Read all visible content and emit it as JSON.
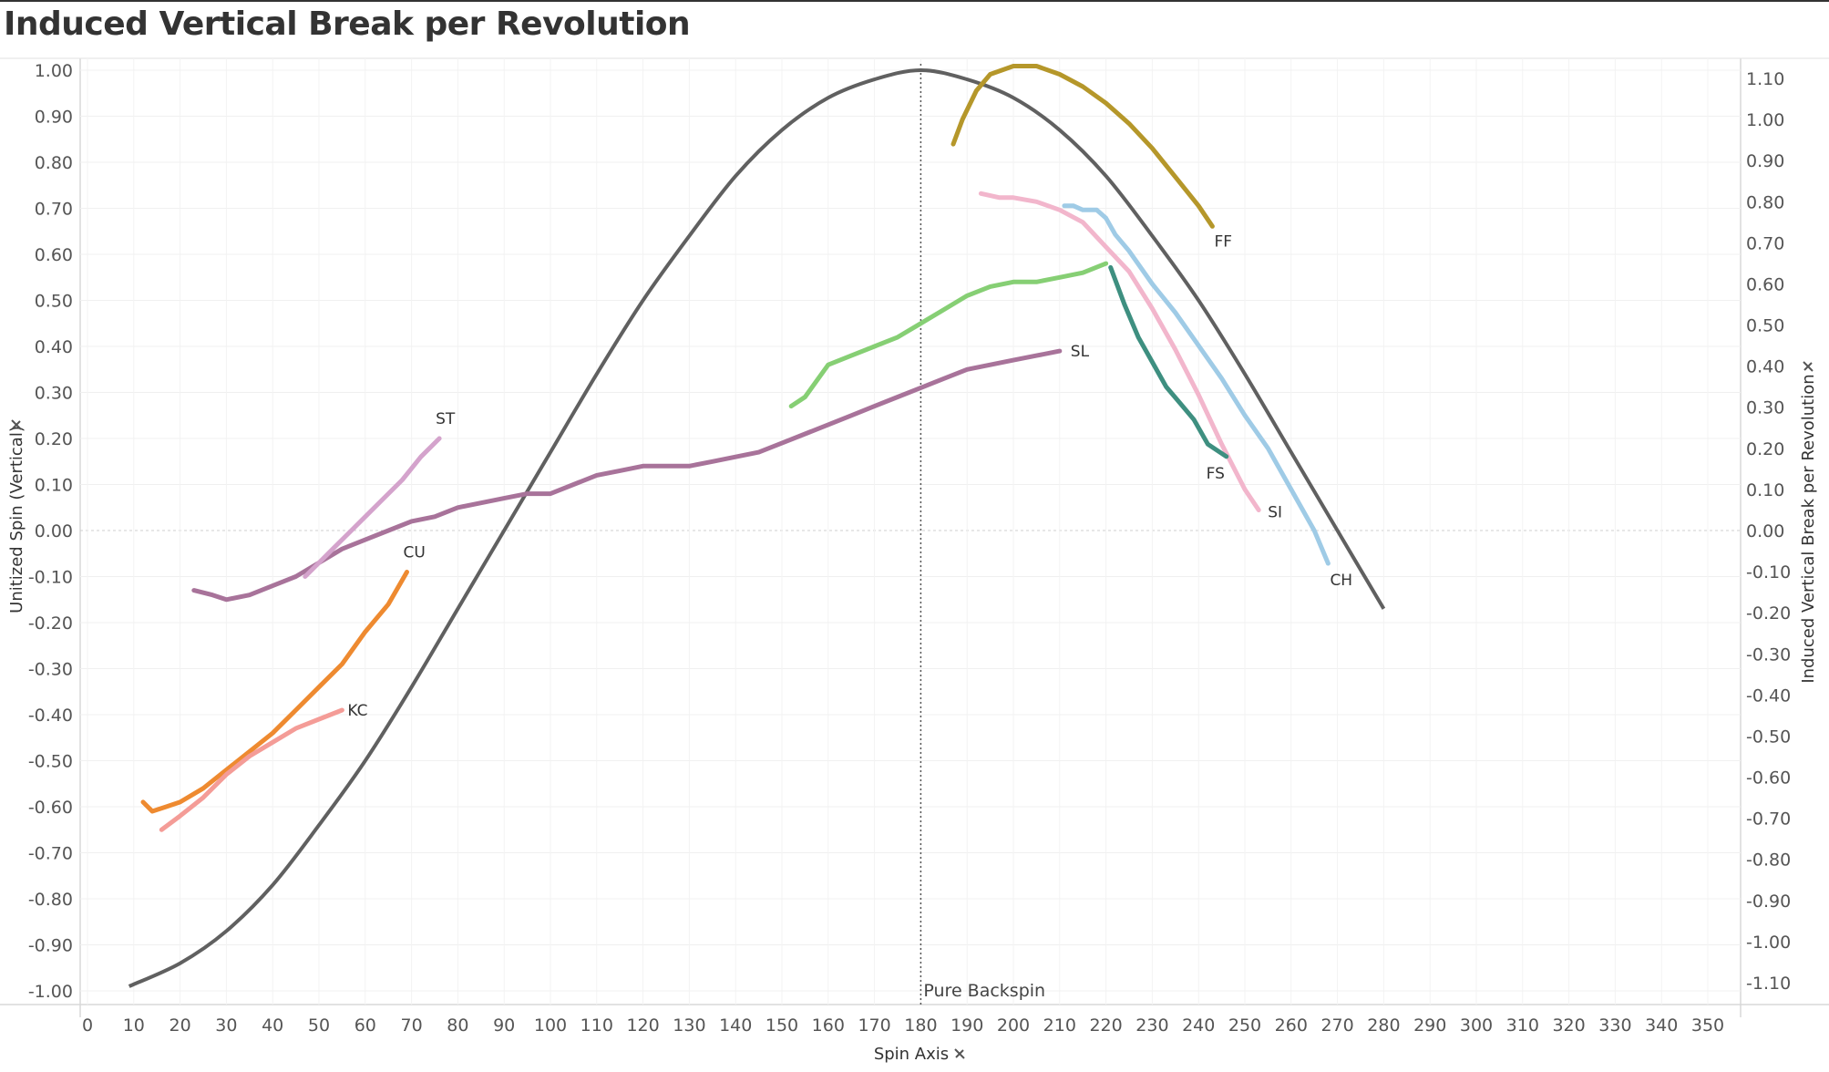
{
  "page_title": "Induced Vertical Break per Revolution",
  "chart_data": {
    "type": "line",
    "title": "Induced Vertical Break per Revolution",
    "xlabel": "Spin Axis",
    "ylabel": "Unitized Spin (Vertical)",
    "y2label": "Induced Vertical Break per Revolution",
    "xlim": [
      0,
      360
    ],
    "ylim": [
      -1.0,
      1.0
    ],
    "y2lim": [
      -1.1,
      1.1
    ],
    "xticks": [
      "0",
      "10",
      "20",
      "30",
      "40",
      "50",
      "60",
      "70",
      "80",
      "90",
      "100",
      "110",
      "120",
      "130",
      "140",
      "150",
      "160",
      "170",
      "180",
      "190",
      "200",
      "210",
      "220",
      "230",
      "240",
      "250",
      "260",
      "270",
      "280",
      "290",
      "300",
      "310",
      "320",
      "330",
      "340",
      "350"
    ],
    "yticks": [
      "1.00",
      "0.90",
      "0.80",
      "0.70",
      "0.60",
      "0.50",
      "0.40",
      "0.30",
      "0.20",
      "0.10",
      "0.00",
      "-0.10",
      "-0.20",
      "-0.30",
      "-0.40",
      "-0.50",
      "-0.60",
      "-0.70",
      "-0.80",
      "-0.90",
      "-1.00"
    ],
    "y2ticks": [
      "1.10",
      "1.00",
      "0.90",
      "0.80",
      "0.70",
      "0.60",
      "0.50",
      "0.40",
      "0.30",
      "0.20",
      "0.10",
      "0.00",
      "-0.10",
      "-0.20",
      "-0.30",
      "-0.40",
      "-0.50",
      "-0.60",
      "-0.70",
      "-0.80",
      "-0.90",
      "-1.00",
      "-1.10"
    ],
    "grid": true,
    "reference_line": {
      "x": 180,
      "label": "Pure Backspin"
    },
    "curve": {
      "axis": "left",
      "color": "#606060",
      "x": [
        9,
        20,
        30,
        40,
        50,
        60,
        70,
        80,
        90,
        100,
        110,
        120,
        130,
        140,
        150,
        160,
        170,
        180,
        190,
        200,
        210,
        220,
        230,
        240,
        250,
        260,
        270,
        280
      ],
      "values": [
        -0.99,
        -0.94,
        -0.87,
        -0.77,
        -0.64,
        -0.5,
        -0.34,
        -0.17,
        0.0,
        0.17,
        0.34,
        0.5,
        0.64,
        0.77,
        0.87,
        0.94,
        0.98,
        1.0,
        0.98,
        0.94,
        0.87,
        0.77,
        0.64,
        0.5,
        0.34,
        0.17,
        0.0,
        -0.17
      ]
    },
    "series": [
      {
        "name": "FF",
        "axis": "right",
        "color": "#b5972a",
        "x": [
          187,
          189,
          192,
          195,
          200,
          205,
          210,
          215,
          220,
          225,
          230,
          235,
          240,
          243
        ],
        "values": [
          0.94,
          1.0,
          1.07,
          1.11,
          1.13,
          1.13,
          1.11,
          1.08,
          1.04,
          0.99,
          0.93,
          0.86,
          0.79,
          0.74
        ]
      },
      {
        "name": "SI",
        "axis": "right",
        "color": "#f2b6cc",
        "x": [
          193,
          197,
          200,
          205,
          210,
          215,
          220,
          225,
          230,
          235,
          240,
          245,
          250,
          253
        ],
        "values": [
          0.82,
          0.81,
          0.81,
          0.8,
          0.78,
          0.75,
          0.69,
          0.63,
          0.54,
          0.44,
          0.33,
          0.21,
          0.1,
          0.05
        ]
      },
      {
        "name": "CH",
        "axis": "right",
        "color": "#9fcbe6",
        "x": [
          211,
          213,
          215,
          218,
          220,
          222,
          225,
          230,
          235,
          240,
          245,
          250,
          255,
          260,
          265,
          268
        ],
        "values": [
          0.79,
          0.79,
          0.78,
          0.78,
          0.76,
          0.72,
          0.68,
          0.6,
          0.53,
          0.45,
          0.37,
          0.28,
          0.2,
          0.1,
          0.0,
          -0.08
        ]
      },
      {
        "name": "FS",
        "axis": "right",
        "color": "#3e8f80",
        "x": [
          221,
          224,
          227,
          230,
          233,
          236,
          239,
          242,
          246
        ],
        "values": [
          0.64,
          0.55,
          0.47,
          0.41,
          0.35,
          0.31,
          0.27,
          0.21,
          0.18
        ]
      },
      {
        "name": "",
        "axis": "left",
        "color": "#86cf74",
        "x": [
          152,
          155,
          160,
          165,
          170,
          175,
          180,
          185,
          190,
          195,
          200,
          205,
          210,
          215,
          220
        ],
        "values": [
          0.27,
          0.29,
          0.36,
          0.38,
          0.4,
          0.42,
          0.45,
          0.48,
          0.51,
          0.53,
          0.54,
          0.54,
          0.55,
          0.56,
          0.58
        ]
      },
      {
        "name": "SL",
        "axis": "left",
        "color": "#a8739a",
        "x": [
          23,
          27,
          30,
          35,
          40,
          45,
          50,
          55,
          60,
          65,
          70,
          75,
          80,
          85,
          90,
          95,
          100,
          105,
          110,
          115,
          120,
          125,
          130,
          135,
          140,
          145,
          150,
          155,
          160,
          165,
          170,
          175,
          180,
          185,
          190,
          195,
          200,
          205,
          210
        ],
        "values": [
          -0.13,
          -0.14,
          -0.15,
          -0.14,
          -0.12,
          -0.1,
          -0.07,
          -0.04,
          -0.02,
          0.0,
          0.02,
          0.03,
          0.05,
          0.06,
          0.07,
          0.08,
          0.08,
          0.1,
          0.12,
          0.13,
          0.14,
          0.14,
          0.14,
          0.15,
          0.16,
          0.17,
          0.19,
          0.21,
          0.23,
          0.25,
          0.27,
          0.29,
          0.31,
          0.33,
          0.35,
          0.36,
          0.37,
          0.38,
          0.39
        ]
      },
      {
        "name": "ST",
        "axis": "left",
        "color": "#d4a3cc",
        "x": [
          47,
          50,
          53,
          56,
          60,
          64,
          68,
          72,
          76
        ],
        "values": [
          -0.1,
          -0.07,
          -0.04,
          -0.01,
          0.03,
          0.07,
          0.11,
          0.16,
          0.2
        ]
      },
      {
        "name": "CU",
        "axis": "left",
        "color": "#ee8a30",
        "x": [
          12,
          14,
          17,
          20,
          25,
          30,
          35,
          40,
          45,
          50,
          55,
          60,
          65,
          69
        ],
        "values": [
          -0.59,
          -0.61,
          -0.6,
          -0.59,
          -0.56,
          -0.52,
          -0.48,
          -0.44,
          -0.39,
          -0.34,
          -0.29,
          -0.22,
          -0.16,
          -0.09
        ]
      },
      {
        "name": "KC",
        "axis": "left",
        "color": "#f49c97",
        "x": [
          16,
          20,
          25,
          30,
          35,
          40,
          45,
          50,
          55
        ],
        "values": [
          -0.65,
          -0.62,
          -0.58,
          -0.53,
          -0.49,
          -0.46,
          -0.43,
          -0.41,
          -0.39
        ]
      }
    ]
  }
}
